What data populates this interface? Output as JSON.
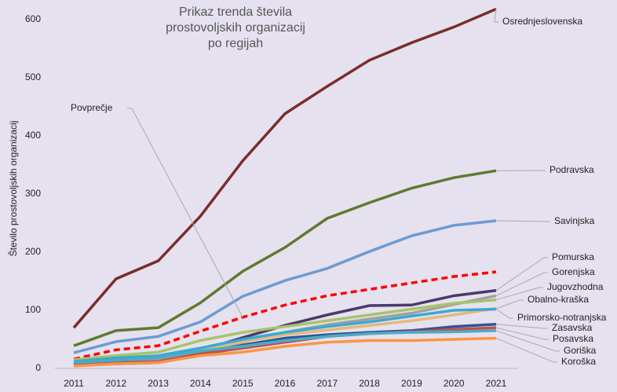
{
  "chart_data": {
    "type": "line",
    "title": "Prikaz trenda števila prostovoljskih organizacij po regijah",
    "y_label": "Število prostovoljskih organizacij",
    "x": [
      2011,
      2012,
      2013,
      2014,
      2015,
      2016,
      2017,
      2018,
      2019,
      2020,
      2021
    ],
    "ylim": [
      0,
      620
    ],
    "yticks": [
      0,
      100,
      200,
      300,
      400,
      500,
      600
    ],
    "grid": false,
    "series": [
      {
        "name": "Osrednjeslovenska",
        "color": "#7b2c2c",
        "values": [
          70,
          154,
          185,
          262,
          357,
          438,
          485,
          530,
          560,
          587,
          618
        ]
      },
      {
        "name": "Podravska",
        "color": "#5f7a30",
        "values": [
          39,
          65,
          70,
          113,
          167,
          208,
          258,
          285,
          310,
          328,
          340
        ]
      },
      {
        "name": "Savinjska",
        "color": "#6c9bd2",
        "values": [
          27,
          46,
          55,
          80,
          124,
          151,
          172,
          201,
          228,
          246,
          254
        ]
      },
      {
        "name": "Povprečje",
        "color": "#ff0000",
        "dashed": true,
        "values": [
          16,
          32,
          39,
          64,
          88,
          109,
          125,
          136,
          147,
          158,
          166
        ]
      },
      {
        "name": "Pomurska",
        "color": "#4b3a6b",
        "values": [
          7,
          12,
          11,
          31,
          53,
          74,
          92,
          108,
          109,
          125,
          134
        ]
      },
      {
        "name": "Gorenjska",
        "color": "#a0a0a0",
        "values": [
          8,
          14,
          17,
          28,
          45,
          62,
          75,
          85,
          95,
          110,
          125
        ]
      },
      {
        "name": "Jugovzhodna",
        "color": "#a6c46a",
        "values": [
          15,
          22,
          28,
          48,
          62,
          72,
          82,
          92,
          102,
          112,
          118
        ]
      },
      {
        "name": "Obalno-kraška",
        "color": "#e6b87a",
        "values": [
          10,
          16,
          20,
          32,
          46,
          58,
          66,
          74,
          82,
          92,
          103
        ]
      },
      {
        "name": "Primorsko-notranjska",
        "color": "#3aa9d1",
        "values": [
          12,
          18,
          22,
          35,
          50,
          62,
          72,
          80,
          90,
          100,
          102
        ]
      },
      {
        "name": "Zasavska",
        "color": "#2f5597",
        "values": [
          5,
          8,
          10,
          25,
          40,
          52,
          58,
          62,
          65,
          72,
          76
        ]
      },
      {
        "name": "Posavska",
        "color": "#c0504d",
        "values": [
          6,
          10,
          12,
          25,
          35,
          45,
          55,
          60,
          63,
          67,
          70
        ]
      },
      {
        "name": "Goriška",
        "color": "#4bacc6",
        "values": [
          10,
          14,
          18,
          30,
          38,
          48,
          55,
          60,
          62,
          63,
          65
        ]
      },
      {
        "name": "Koroška",
        "color": "#f79646",
        "values": [
          4,
          8,
          10,
          22,
          28,
          38,
          45,
          48,
          48,
          50,
          52
        ]
      }
    ]
  }
}
